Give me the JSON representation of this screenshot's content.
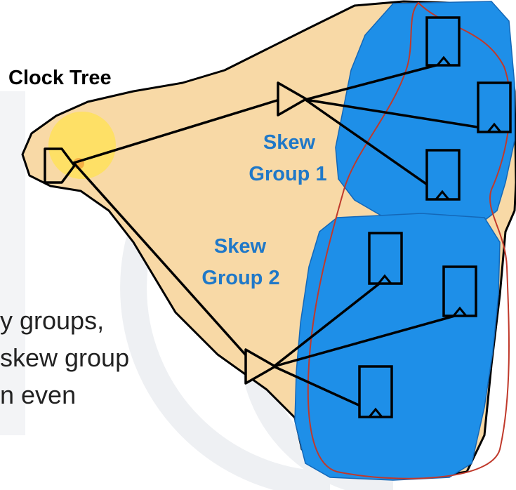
{
  "diagram": {
    "title": "Clock Tree",
    "groups": [
      {
        "line1": "Skew",
        "line2": "Group 1"
      },
      {
        "line1": "Skew",
        "line2": "Group 2"
      }
    ],
    "caption_lines": [
      "y groups,",
      "skew group",
      "n even"
    ],
    "colors": {
      "region_fill": "#F8D9A6",
      "group_fill": "#1E8FE8",
      "outline": "#000000",
      "label_blue": "#1F78C8",
      "boundary_red": "#C0392B",
      "highlight": "#FFE15A"
    }
  }
}
